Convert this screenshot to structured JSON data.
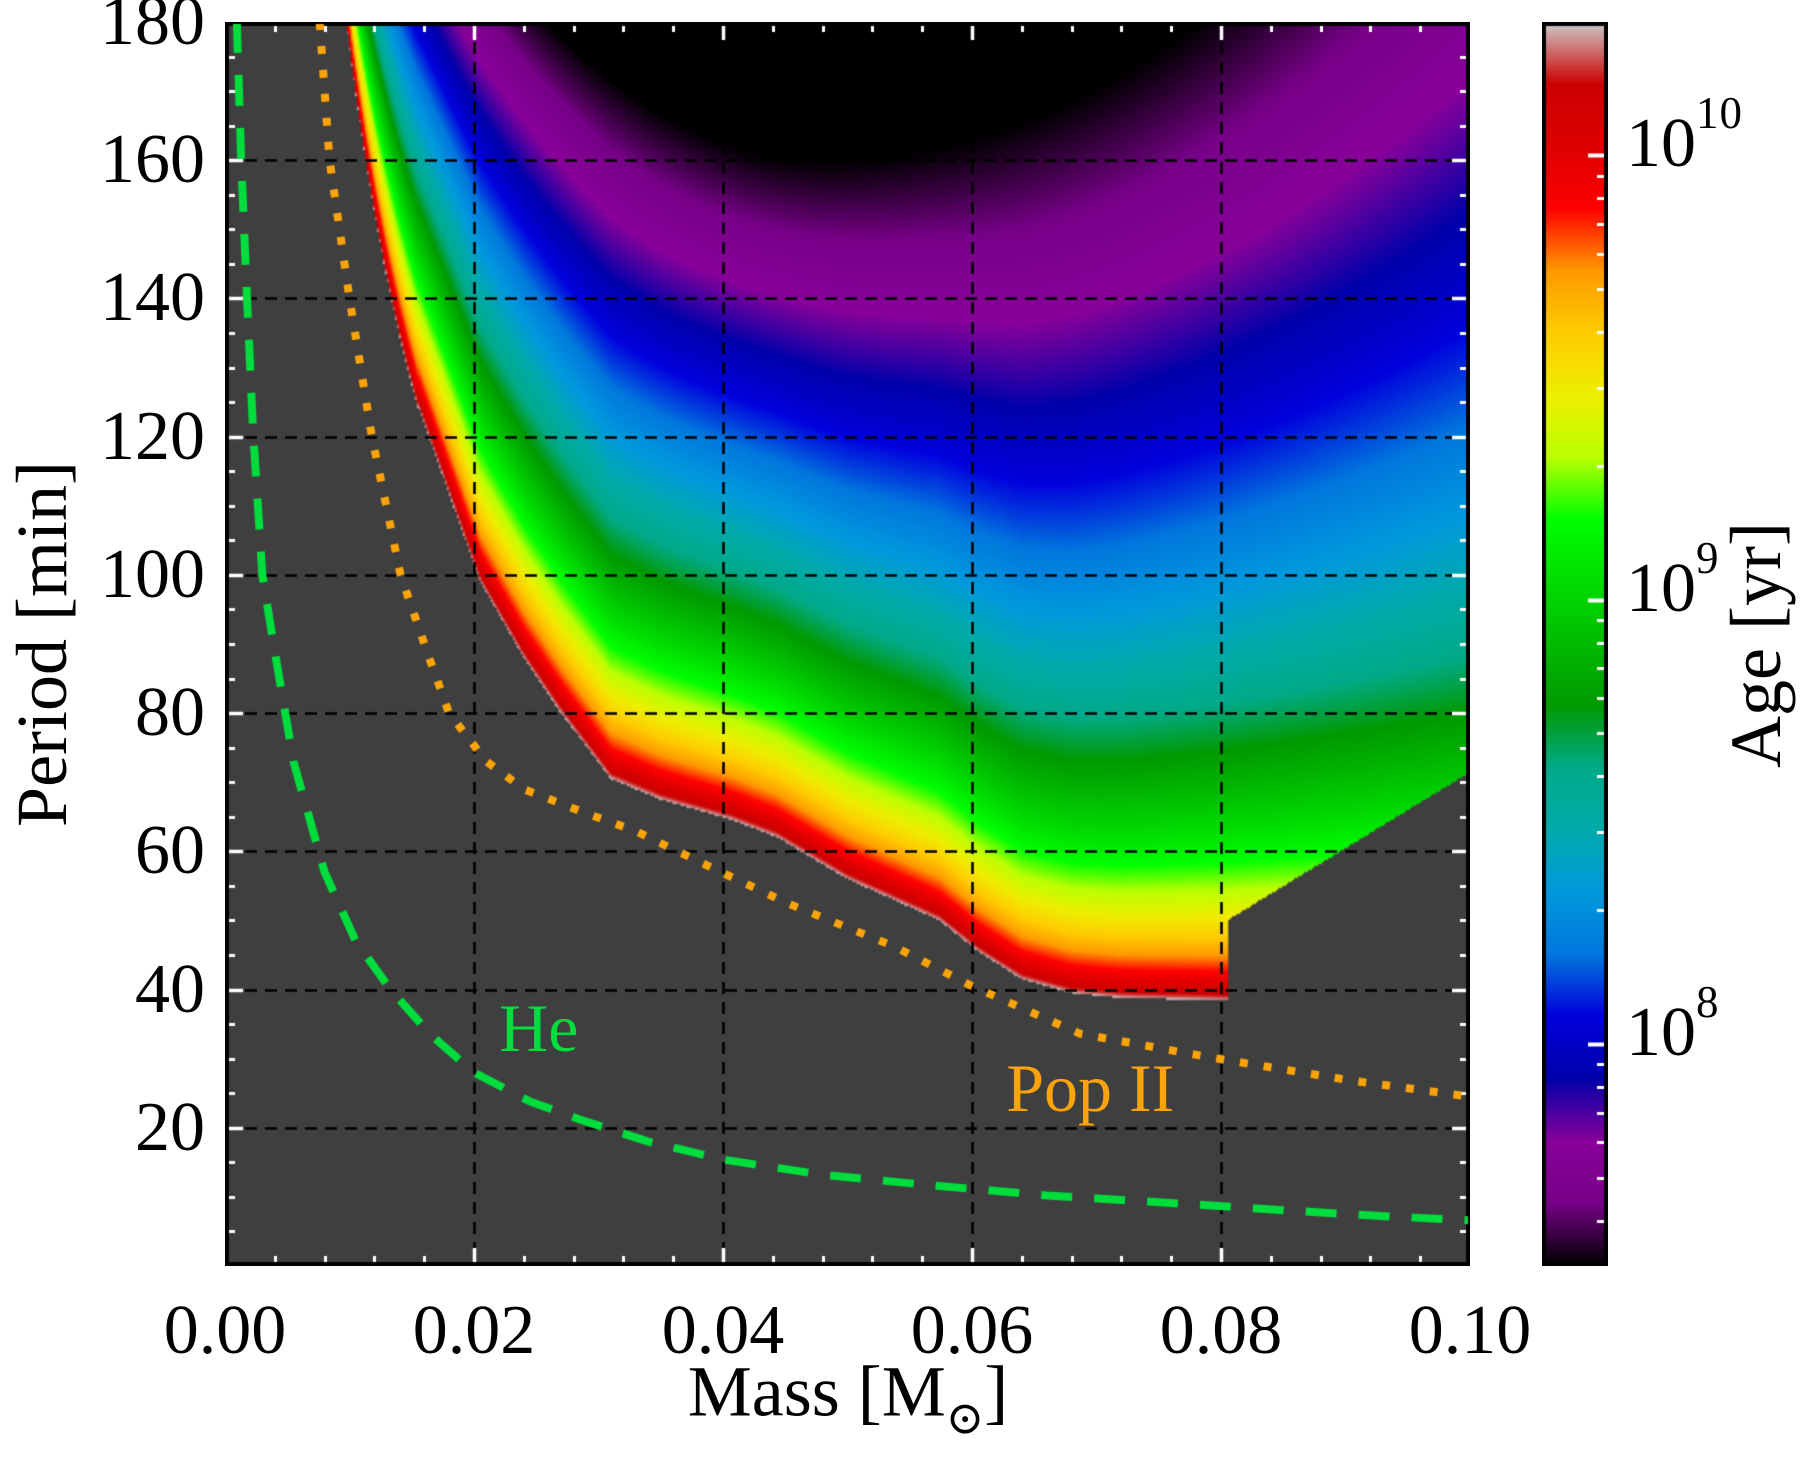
{
  "chart_data": {
    "type": "heatmap",
    "title": "",
    "xlabel": "Mass [M⊙]",
    "xlabel_parts": {
      "pre": "Mass [M",
      "sub": "⊙",
      "post": "]"
    },
    "ylabel": "Period [min]",
    "x_range": [
      0.0,
      0.1
    ],
    "y_range": [
      0,
      180
    ],
    "x_major_ticks": [
      0.0,
      0.02,
      0.04,
      0.06,
      0.08,
      0.1
    ],
    "x_major_tick_labels": [
      "0.00",
      "0.02",
      "0.04",
      "0.06",
      "0.08",
      "0.10"
    ],
    "x_minor_tick_step": 0.004,
    "y_major_ticks": [
      180,
      160,
      140,
      120,
      100,
      80,
      60,
      40,
      20
    ],
    "y_major_tick_labels": [
      "180",
      "160",
      "140",
      "120",
      "100",
      "80",
      "60",
      "40",
      "20"
    ],
    "y_minor_tick_step": 5,
    "grid": {
      "enabled": true,
      "style": "dashed",
      "color": "#000000",
      "x_lines": [
        0.02,
        0.04,
        0.06,
        0.08
      ],
      "y_lines": [
        20,
        40,
        60,
        80,
        100,
        120,
        140,
        160
      ]
    },
    "tick_color": "#ffffff",
    "border_color": "#000000",
    "colorbar": {
      "label": "Age [yr]",
      "scale": "log10",
      "range_log10": [
        7.5,
        10.3
      ],
      "major_ticks": [
        {
          "log10": 10,
          "base": "10",
          "exp": "10"
        },
        {
          "log10": 9,
          "base": "10",
          "exp": "9"
        },
        {
          "log10": 8,
          "base": "10",
          "exp": "8"
        }
      ],
      "colormap": "nipy_spectral",
      "stops": [
        [
          0.0,
          0.0,
          0.0,
          0.0
        ],
        [
          0.05,
          0.4667,
          0.0,
          0.5333
        ],
        [
          0.1,
          0.5333,
          0.0,
          0.6
        ],
        [
          0.15,
          0.0,
          0.0,
          0.6667
        ],
        [
          0.2,
          0.0,
          0.0,
          0.8667
        ],
        [
          0.25,
          0.0,
          0.4667,
          0.8667
        ],
        [
          0.3,
          0.0,
          0.6,
          0.8667
        ],
        [
          0.35,
          0.0,
          0.6667,
          0.6667
        ],
        [
          0.4,
          0.0,
          0.6667,
          0.5333
        ],
        [
          0.45,
          0.0,
          0.6,
          0.0
        ],
        [
          0.5,
          0.0,
          0.7333,
          0.0
        ],
        [
          0.55,
          0.0,
          0.8667,
          0.0
        ],
        [
          0.6,
          0.0,
          1.0,
          0.0
        ],
        [
          0.65,
          0.7333,
          1.0,
          0.0
        ],
        [
          0.7,
          0.9333,
          0.9333,
          0.0
        ],
        [
          0.75,
          1.0,
          0.8,
          0.0
        ],
        [
          0.8,
          1.0,
          0.6,
          0.0
        ],
        [
          0.85,
          1.0,
          0.0,
          0.0
        ],
        [
          0.9,
          0.8667,
          0.0,
          0.0
        ],
        [
          0.95,
          0.8,
          0.0,
          0.0
        ],
        [
          1.0,
          0.8,
          0.8,
          0.8
        ]
      ]
    },
    "heatmap_model": {
      "description": "log10(Age/yr)=10.3-2.8*min(1,(ln(P/Pb)/ln(Ptop/Pb))^0.7); gray where P<Pb or under wedge",
      "logA_top": 10.3,
      "logA_bottom": 7.5,
      "shape_exponent": 0.7,
      "boundary_analytic": {
        "C": 4.43,
        "alpha": 0.8,
        "valid_below_m": 0.0156
      },
      "boundary_points": [
        [
          0.0156,
          124
        ],
        [
          0.0205,
          99
        ],
        [
          0.024,
          88
        ],
        [
          0.027,
          80
        ],
        [
          0.031,
          70.5
        ],
        [
          0.035,
          67.5
        ],
        [
          0.0408,
          64.5
        ],
        [
          0.0444,
          62
        ],
        [
          0.05,
          56
        ],
        [
          0.0574,
          50
        ],
        [
          0.0605,
          45.5
        ],
        [
          0.064,
          41.5
        ],
        [
          0.068,
          39.5
        ],
        [
          0.072,
          38.8
        ],
        [
          0.0805,
          38.4
        ],
        [
          0.102,
          38.0
        ]
      ],
      "ptop": {
        "base": 160,
        "m0": 0.048,
        "quad_left": 41300,
        "quad_right": 22000
      },
      "wedge": {
        "m_start": 0.0805,
        "P_start": 50,
        "slope": 1100
      },
      "excluded_color": "#3f3f3f"
    },
    "curves": [
      {
        "id": "he",
        "label": "He",
        "color": "#00dd3c",
        "style": "dashed",
        "line_width": 8,
        "label_anchor": {
          "m": 0.0252,
          "P": 34.5
        },
        "points": [
          [
            0.00095,
            180
          ],
          [
            0.0013,
            160
          ],
          [
            0.00177,
            140
          ],
          [
            0.00225,
            121
          ],
          [
            0.003,
            100
          ],
          [
            0.0039,
            90
          ],
          [
            0.0055,
            73
          ],
          [
            0.008,
            57
          ],
          [
            0.0105,
            47
          ],
          [
            0.0133,
            40
          ],
          [
            0.0165,
            33.5
          ],
          [
            0.02,
            28
          ],
          [
            0.0245,
            23.8
          ],
          [
            0.0285,
            21.2
          ],
          [
            0.034,
            18
          ],
          [
            0.04,
            15.4
          ],
          [
            0.048,
            13.2
          ],
          [
            0.056,
            11.8
          ],
          [
            0.066,
            10.2
          ],
          [
            0.078,
            8.9
          ],
          [
            0.09,
            7.5
          ],
          [
            0.0955,
            7.0
          ],
          [
            0.1,
            6.6
          ]
        ]
      },
      {
        "id": "pop2",
        "label": "Pop II",
        "color": "#faa30a",
        "style": "dotted",
        "line_width": 8,
        "label_anchor": {
          "m": 0.0695,
          "P": 25.7
        },
        "points": [
          [
            0.0076,
            180
          ],
          [
            0.0084,
            160
          ],
          [
            0.01,
            140
          ],
          [
            0.0118,
            120
          ],
          [
            0.0141,
            100
          ],
          [
            0.0164,
            88
          ],
          [
            0.018,
            80
          ],
          [
            0.021,
            73
          ],
          [
            0.024,
            69
          ],
          [
            0.029,
            65.5
          ],
          [
            0.0329,
            63
          ],
          [
            0.0403,
            56.6
          ],
          [
            0.0453,
            52.4
          ],
          [
            0.0538,
            46.2
          ],
          [
            0.06,
            40.5
          ],
          [
            0.0687,
            33.6
          ],
          [
            0.0794,
            30.1
          ],
          [
            0.0906,
            26.8
          ],
          [
            0.1,
            24.5
          ]
        ]
      }
    ]
  }
}
